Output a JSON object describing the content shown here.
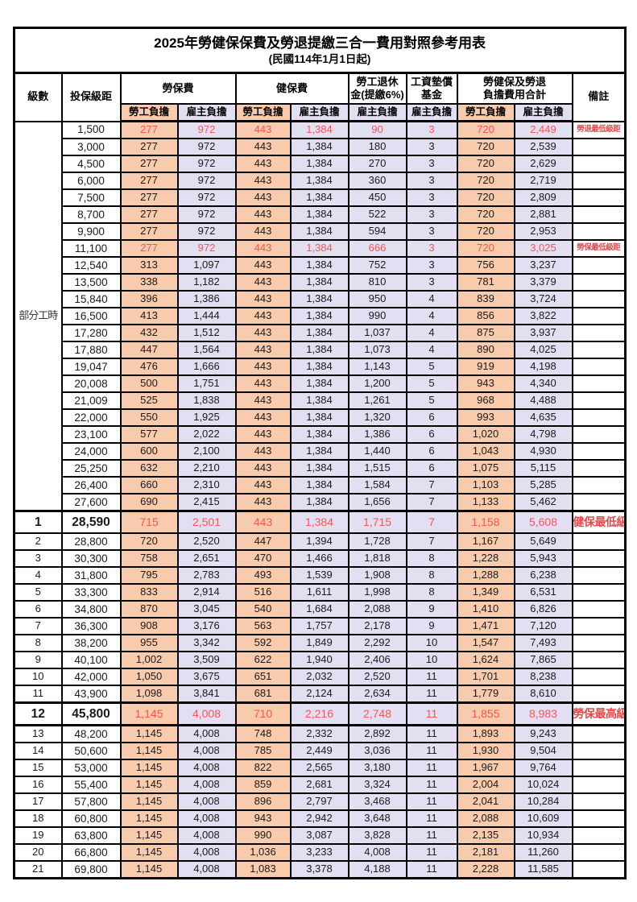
{
  "title": "2025年勞健保保費及勞退提繳三合一費用對照參考用表",
  "subtitle": "(民國114年1月1日起)",
  "colors": {
    "employee_bg": "#F8CBAD",
    "employer_bg": "#E1DFF1",
    "highlight_value": "#FF5252",
    "remark_red": "#E04B4B",
    "border": "#000000"
  },
  "header": {
    "level": "級數",
    "bracket": "投保級距",
    "labor_ins": "勞保費",
    "health_ins": "健保費",
    "pension_line1": "勞工退休",
    "pension_line2": "金(提繳6%)",
    "wage_fund_line1": "工資墊償",
    "wage_fund_line2": "基金",
    "total_line1": "勞健保及勞退",
    "total_line2": "負擔費用合計",
    "remark": "備註",
    "employee_share": "勞工負擔",
    "employer_share": "雇主負擔"
  },
  "section": {
    "label": "部分工時",
    "rowspan": 23
  },
  "columns": [
    "級數",
    "投保級距",
    "勞保費-勞工負擔",
    "勞保費-雇主負擔",
    "健保費-勞工負擔",
    "健保費-雇主負擔",
    "勞工退休金(提繳6%)-雇主負擔",
    "工資墊償基金-雇主負擔",
    "合計-勞工負擔",
    "合計-雇主負擔",
    "備註"
  ],
  "rows": [
    {
      "level": "",
      "bracket": "1,500",
      "v": [
        "277",
        "972",
        "443",
        "1,384",
        "90",
        "3",
        "720",
        "2,449"
      ],
      "remark": "勞退最低級距",
      "red": true,
      "big": false
    },
    {
      "level": "",
      "bracket": "3,000",
      "v": [
        "277",
        "972",
        "443",
        "1,384",
        "180",
        "3",
        "720",
        "2,539"
      ],
      "remark": "",
      "red": false,
      "big": false
    },
    {
      "level": "",
      "bracket": "4,500",
      "v": [
        "277",
        "972",
        "443",
        "1,384",
        "270",
        "3",
        "720",
        "2,629"
      ],
      "remark": "",
      "red": false,
      "big": false
    },
    {
      "level": "",
      "bracket": "6,000",
      "v": [
        "277",
        "972",
        "443",
        "1,384",
        "360",
        "3",
        "720",
        "2,719"
      ],
      "remark": "",
      "red": false,
      "big": false
    },
    {
      "level": "",
      "bracket": "7,500",
      "v": [
        "277",
        "972",
        "443",
        "1,384",
        "450",
        "3",
        "720",
        "2,809"
      ],
      "remark": "",
      "red": false,
      "big": false
    },
    {
      "level": "",
      "bracket": "8,700",
      "v": [
        "277",
        "972",
        "443",
        "1,384",
        "522",
        "3",
        "720",
        "2,881"
      ],
      "remark": "",
      "red": false,
      "big": false
    },
    {
      "level": "",
      "bracket": "9,900",
      "v": [
        "277",
        "972",
        "443",
        "1,384",
        "594",
        "3",
        "720",
        "2,953"
      ],
      "remark": "",
      "red": false,
      "big": false
    },
    {
      "level": "",
      "bracket": "11,100",
      "v": [
        "277",
        "972",
        "443",
        "1,384",
        "666",
        "3",
        "720",
        "3,025"
      ],
      "remark": "勞保最低級距",
      "red": true,
      "big": false
    },
    {
      "level": "",
      "bracket": "12,540",
      "v": [
        "313",
        "1,097",
        "443",
        "1,384",
        "752",
        "3",
        "756",
        "3,237"
      ],
      "remark": "",
      "red": false,
      "big": false
    },
    {
      "level": "",
      "bracket": "13,500",
      "v": [
        "338",
        "1,182",
        "443",
        "1,384",
        "810",
        "3",
        "781",
        "3,379"
      ],
      "remark": "",
      "red": false,
      "big": false
    },
    {
      "level": "",
      "bracket": "15,840",
      "v": [
        "396",
        "1,386",
        "443",
        "1,384",
        "950",
        "4",
        "839",
        "3,724"
      ],
      "remark": "",
      "red": false,
      "big": false
    },
    {
      "level": "",
      "bracket": "16,500",
      "v": [
        "413",
        "1,444",
        "443",
        "1,384",
        "990",
        "4",
        "856",
        "3,822"
      ],
      "remark": "",
      "red": false,
      "big": false
    },
    {
      "level": "",
      "bracket": "17,280",
      "v": [
        "432",
        "1,512",
        "443",
        "1,384",
        "1,037",
        "4",
        "875",
        "3,937"
      ],
      "remark": "",
      "red": false,
      "big": false
    },
    {
      "level": "",
      "bracket": "17,880",
      "v": [
        "447",
        "1,564",
        "443",
        "1,384",
        "1,073",
        "4",
        "890",
        "4,025"
      ],
      "remark": "",
      "red": false,
      "big": false
    },
    {
      "level": "",
      "bracket": "19,047",
      "v": [
        "476",
        "1,666",
        "443",
        "1,384",
        "1,143",
        "5",
        "919",
        "4,198"
      ],
      "remark": "",
      "red": false,
      "big": false
    },
    {
      "level": "",
      "bracket": "20,008",
      "v": [
        "500",
        "1,751",
        "443",
        "1,384",
        "1,200",
        "5",
        "943",
        "4,340"
      ],
      "remark": "",
      "red": false,
      "big": false
    },
    {
      "level": "",
      "bracket": "21,009",
      "v": [
        "525",
        "1,838",
        "443",
        "1,384",
        "1,261",
        "5",
        "968",
        "4,488"
      ],
      "remark": "",
      "red": false,
      "big": false
    },
    {
      "level": "",
      "bracket": "22,000",
      "v": [
        "550",
        "1,925",
        "443",
        "1,384",
        "1,320",
        "6",
        "993",
        "4,635"
      ],
      "remark": "",
      "red": false,
      "big": false
    },
    {
      "level": "",
      "bracket": "23,100",
      "v": [
        "577",
        "2,022",
        "443",
        "1,384",
        "1,386",
        "6",
        "1,020",
        "4,798"
      ],
      "remark": "",
      "red": false,
      "big": false
    },
    {
      "level": "",
      "bracket": "24,000",
      "v": [
        "600",
        "2,100",
        "443",
        "1,384",
        "1,440",
        "6",
        "1,043",
        "4,930"
      ],
      "remark": "",
      "red": false,
      "big": false
    },
    {
      "level": "",
      "bracket": "25,250",
      "v": [
        "632",
        "2,210",
        "443",
        "1,384",
        "1,515",
        "6",
        "1,075",
        "5,115"
      ],
      "remark": "",
      "red": false,
      "big": false
    },
    {
      "level": "",
      "bracket": "26,400",
      "v": [
        "660",
        "2,310",
        "443",
        "1,384",
        "1,584",
        "7",
        "1,103",
        "5,285"
      ],
      "remark": "",
      "red": false,
      "big": false
    },
    {
      "level": "",
      "bracket": "27,600",
      "v": [
        "690",
        "2,415",
        "443",
        "1,384",
        "1,656",
        "7",
        "1,133",
        "5,462"
      ],
      "remark": "",
      "red": false,
      "big": false
    },
    {
      "level": "1",
      "bracket": "28,590",
      "v": [
        "715",
        "2,501",
        "443",
        "1,384",
        "1,715",
        "7",
        "1,158",
        "5,608"
      ],
      "remark": "健保最低級距",
      "red": true,
      "big": true,
      "thickTop": true
    },
    {
      "level": "2",
      "bracket": "28,800",
      "v": [
        "720",
        "2,520",
        "447",
        "1,394",
        "1,728",
        "7",
        "1,167",
        "5,649"
      ],
      "remark": "",
      "red": false,
      "big": false
    },
    {
      "level": "3",
      "bracket": "30,300",
      "v": [
        "758",
        "2,651",
        "470",
        "1,466",
        "1,818",
        "8",
        "1,228",
        "5,943"
      ],
      "remark": "",
      "red": false,
      "big": false
    },
    {
      "level": "4",
      "bracket": "31,800",
      "v": [
        "795",
        "2,783",
        "493",
        "1,539",
        "1,908",
        "8",
        "1,288",
        "6,238"
      ],
      "remark": "",
      "red": false,
      "big": false
    },
    {
      "level": "5",
      "bracket": "33,300",
      "v": [
        "833",
        "2,914",
        "516",
        "1,611",
        "1,998",
        "8",
        "1,349",
        "6,531"
      ],
      "remark": "",
      "red": false,
      "big": false
    },
    {
      "level": "6",
      "bracket": "34,800",
      "v": [
        "870",
        "3,045",
        "540",
        "1,684",
        "2,088",
        "9",
        "1,410",
        "6,826"
      ],
      "remark": "",
      "red": false,
      "big": false
    },
    {
      "level": "7",
      "bracket": "36,300",
      "v": [
        "908",
        "3,176",
        "563",
        "1,757",
        "2,178",
        "9",
        "1,471",
        "7,120"
      ],
      "remark": "",
      "red": false,
      "big": false
    },
    {
      "level": "8",
      "bracket": "38,200",
      "v": [
        "955",
        "3,342",
        "592",
        "1,849",
        "2,292",
        "10",
        "1,547",
        "7,493"
      ],
      "remark": "",
      "red": false,
      "big": false
    },
    {
      "level": "9",
      "bracket": "40,100",
      "v": [
        "1,002",
        "3,509",
        "622",
        "1,940",
        "2,406",
        "10",
        "1,624",
        "7,865"
      ],
      "remark": "",
      "red": false,
      "big": false
    },
    {
      "level": "10",
      "bracket": "42,000",
      "v": [
        "1,050",
        "3,675",
        "651",
        "2,032",
        "2,520",
        "11",
        "1,701",
        "8,238"
      ],
      "remark": "",
      "red": false,
      "big": false
    },
    {
      "level": "11",
      "bracket": "43,900",
      "v": [
        "1,098",
        "3,841",
        "681",
        "2,124",
        "2,634",
        "11",
        "1,779",
        "8,610"
      ],
      "remark": "",
      "red": false,
      "big": false
    },
    {
      "level": "12",
      "bracket": "45,800",
      "v": [
        "1,145",
        "4,008",
        "710",
        "2,216",
        "2,748",
        "11",
        "1,855",
        "8,983"
      ],
      "remark": "勞保最高級距",
      "red": true,
      "big": true,
      "thickTop": true,
      "thickBottom": true
    },
    {
      "level": "13",
      "bracket": "48,200",
      "v": [
        "1,145",
        "4,008",
        "748",
        "2,332",
        "2,892",
        "11",
        "1,893",
        "9,243"
      ],
      "remark": "",
      "red": false,
      "big": false
    },
    {
      "level": "14",
      "bracket": "50,600",
      "v": [
        "1,145",
        "4,008",
        "785",
        "2,449",
        "3,036",
        "11",
        "1,930",
        "9,504"
      ],
      "remark": "",
      "red": false,
      "big": false
    },
    {
      "level": "15",
      "bracket": "53,000",
      "v": [
        "1,145",
        "4,008",
        "822",
        "2,565",
        "3,180",
        "11",
        "1,967",
        "9,764"
      ],
      "remark": "",
      "red": false,
      "big": false
    },
    {
      "level": "16",
      "bracket": "55,400",
      "v": [
        "1,145",
        "4,008",
        "859",
        "2,681",
        "3,324",
        "11",
        "2,004",
        "10,024"
      ],
      "remark": "",
      "red": false,
      "big": false
    },
    {
      "level": "17",
      "bracket": "57,800",
      "v": [
        "1,145",
        "4,008",
        "896",
        "2,797",
        "3,468",
        "11",
        "2,041",
        "10,284"
      ],
      "remark": "",
      "red": false,
      "big": false
    },
    {
      "level": "18",
      "bracket": "60,800",
      "v": [
        "1,145",
        "4,008",
        "943",
        "2,942",
        "3,648",
        "11",
        "2,088",
        "10,609"
      ],
      "remark": "",
      "red": false,
      "big": false
    },
    {
      "level": "19",
      "bracket": "63,800",
      "v": [
        "1,145",
        "4,008",
        "990",
        "3,087",
        "3,828",
        "11",
        "2,135",
        "10,934"
      ],
      "remark": "",
      "red": false,
      "big": false
    },
    {
      "level": "20",
      "bracket": "66,800",
      "v": [
        "1,145",
        "4,008",
        "1,036",
        "3,233",
        "4,008",
        "11",
        "2,181",
        "11,260"
      ],
      "remark": "",
      "red": false,
      "big": false
    },
    {
      "level": "21",
      "bracket": "69,800",
      "v": [
        "1,145",
        "4,008",
        "1,083",
        "3,378",
        "4,188",
        "11",
        "2,228",
        "11,585"
      ],
      "remark": "",
      "red": false,
      "big": false
    }
  ]
}
